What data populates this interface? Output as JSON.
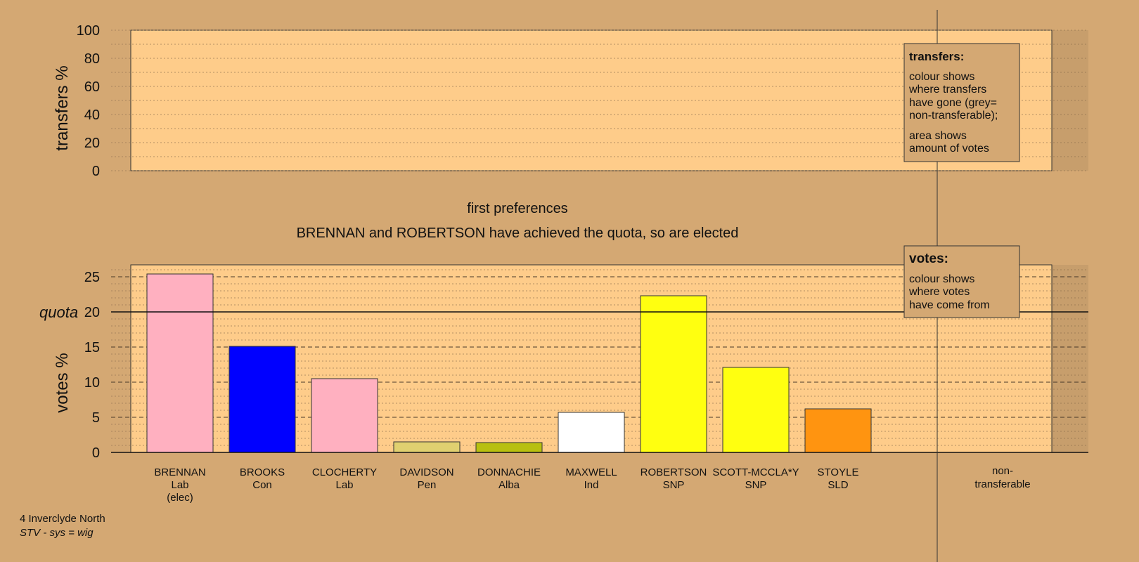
{
  "colors": {
    "background": "#d4a873",
    "plot_area": "#fecc8a",
    "Lab": "#ffb0c0",
    "Con": "#0000ff",
    "Pen": "#e0d070",
    "Alba": "#b8c010",
    "Ind": "#ffffff",
    "SNP": "#ffff10",
    "SLD": "#ff9410"
  },
  "transfers_panel": {
    "ylabel": "transfers %",
    "ylim": [
      0,
      100
    ],
    "yticks": [
      0,
      20,
      40,
      60,
      80,
      100
    ],
    "legend": {
      "title": "transfers:",
      "lines1": [
        "colour shows",
        "where transfers",
        "have gone (grey=",
        "non-transferable);"
      ],
      "lines2": [
        "area shows",
        "amount of votes"
      ]
    }
  },
  "stage_title": "first preferences",
  "stage_subtitle": "BRENNAN and ROBERTSON have achieved the quota, so are elected",
  "chart_data": {
    "type": "bar",
    "ylabel": "votes %",
    "ylim": [
      0,
      26.7
    ],
    "yticks": [
      0,
      5,
      10,
      15,
      20,
      25
    ],
    "quota_label": "quota",
    "quota": 20,
    "categories": [
      "BRENNAN",
      "BROOKS",
      "CLOCHERTY",
      "DAVIDSON",
      "DONNACHIE",
      "MAXWELL",
      "ROBERTSON",
      "SCOTT-MCCLA*Y",
      "STOYLE"
    ],
    "parties": [
      "Lab",
      "Con",
      "Lab",
      "Pen",
      "Alba",
      "Ind",
      "SNP",
      "SNP",
      "SLD"
    ],
    "notes": [
      "(elec)",
      "",
      "",
      "",
      "",
      "",
      "",
      "",
      ""
    ],
    "values": [
      25.4,
      15.1,
      10.5,
      1.5,
      1.4,
      5.7,
      22.3,
      12.1,
      6.2
    ],
    "nontransferable_label": [
      "non-",
      "transferable"
    ],
    "legend": {
      "title": "votes:",
      "lines": [
        "colour shows",
        "where votes",
        "have come from"
      ]
    }
  },
  "footer": {
    "constituency": "4 Inverclyde North",
    "system": "STV - sys = wig"
  }
}
